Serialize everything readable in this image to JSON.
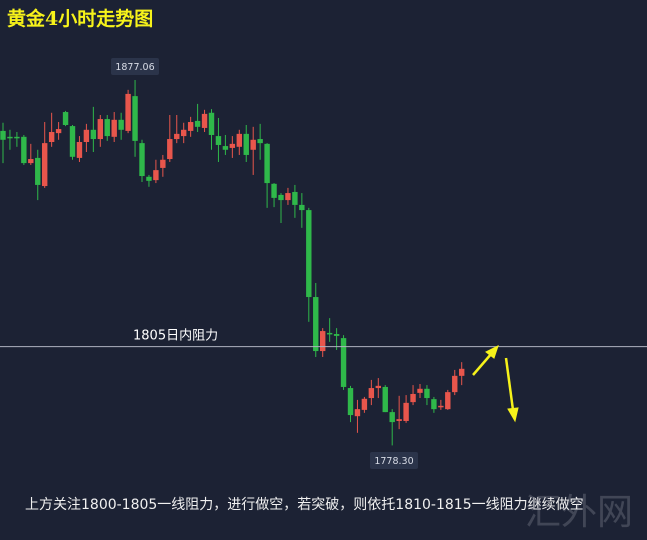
{
  "title": "黄金4小时走势图",
  "watermark": "汇外网",
  "note": "上方关注1800-1805一线阻力，进行做空，若突破，则依托1810-1815一线阻力继续做空",
  "chart_data": {
    "type": "candlestick",
    "title": "黄金4小时走势图",
    "colors": {
      "up": "#e8564c",
      "down": "#2fb84a",
      "background": "#1c2234",
      "arrow": "#f6f21a",
      "line": "#aeb3bf"
    },
    "ohlc_order": [
      "open",
      "high",
      "low",
      "close"
    ],
    "candles": [
      [
        1863.3,
        1865.5,
        1854.6,
        1860.9
      ],
      [
        1861.7,
        1863.6,
        1858.2,
        1861.5
      ],
      [
        1861.7,
        1863.0,
        1859.0,
        1861.6
      ],
      [
        1861.7,
        1862.2,
        1854.1,
        1854.6
      ],
      [
        1854.6,
        1859.8,
        1854.1,
        1855.7
      ],
      [
        1856.0,
        1858.2,
        1844.6,
        1848.7
      ],
      [
        1848.4,
        1865.7,
        1847.9,
        1860.0
      ],
      [
        1860.3,
        1868.2,
        1859.0,
        1863.0
      ],
      [
        1862.7,
        1865.7,
        1860.9,
        1863.8
      ],
      [
        1868.4,
        1868.7,
        1864.6,
        1864.9
      ],
      [
        1864.6,
        1864.9,
        1855.5,
        1856.3
      ],
      [
        1856.0,
        1861.9,
        1854.9,
        1860.3
      ],
      [
        1860.3,
        1865.2,
        1857.6,
        1863.6
      ],
      [
        1863.6,
        1869.8,
        1857.6,
        1861.1
      ],
      [
        1861.1,
        1867.6,
        1859.0,
        1866.5
      ],
      [
        1866.5,
        1867.6,
        1860.6,
        1861.9
      ],
      [
        1861.7,
        1868.4,
        1860.3,
        1866.3
      ],
      [
        1866.3,
        1868.2,
        1860.9,
        1863.6
      ],
      [
        1863.3,
        1874.4,
        1862.7,
        1873.3
      ],
      [
        1872.7,
        1877.06,
        1856.3,
        1860.6
      ],
      [
        1860.0,
        1860.9,
        1849.5,
        1851.1
      ],
      [
        1850.9,
        1851.4,
        1848.2,
        1849.8
      ],
      [
        1850.0,
        1855.5,
        1849.2,
        1852.7
      ],
      [
        1853.3,
        1856.8,
        1850.9,
        1855.5
      ],
      [
        1855.7,
        1867.6,
        1854.9,
        1861.1
      ],
      [
        1861.1,
        1867.6,
        1860.0,
        1862.5
      ],
      [
        1861.9,
        1865.5,
        1860.0,
        1863.6
      ],
      [
        1863.3,
        1867.1,
        1861.7,
        1865.7
      ],
      [
        1866.0,
        1870.6,
        1863.0,
        1864.4
      ],
      [
        1864.1,
        1869.0,
        1863.0,
        1867.9
      ],
      [
        1868.2,
        1869.2,
        1858.2,
        1862.2
      ],
      [
        1861.9,
        1866.8,
        1854.9,
        1859.5
      ],
      [
        1859.2,
        1862.2,
        1856.8,
        1858.2
      ],
      [
        1858.7,
        1861.9,
        1856.0,
        1859.8
      ],
      [
        1859.0,
        1863.6,
        1856.8,
        1862.5
      ],
      [
        1862.5,
        1864.9,
        1854.9,
        1856.8
      ],
      [
        1858.2,
        1864.4,
        1851.4,
        1860.9
      ],
      [
        1861.1,
        1865.2,
        1855.5,
        1860.0
      ],
      [
        1859.8,
        1860.0,
        1842.5,
        1849.2
      ],
      [
        1849.0,
        1849.2,
        1842.7,
        1845.2
      ],
      [
        1846.0,
        1846.5,
        1838.4,
        1844.6
      ],
      [
        1844.6,
        1847.9,
        1843.3,
        1846.5
      ],
      [
        1846.8,
        1848.7,
        1839.8,
        1843.3
      ],
      [
        1843.3,
        1846.5,
        1837.1,
        1841.9
      ],
      [
        1841.9,
        1842.5,
        1811.7,
        1818.4
      ],
      [
        1818.4,
        1822.2,
        1802.2,
        1803.8
      ],
      [
        1803.8,
        1810.0,
        1802.2,
        1809.2
      ],
      [
        1808.7,
        1812.7,
        1806.3,
        1808.4
      ],
      [
        1808.4,
        1810.0,
        1804.1,
        1807.9
      ],
      [
        1807.3,
        1808.1,
        1793.3,
        1794.1
      ],
      [
        1793.8,
        1794.4,
        1784.6,
        1786.5
      ],
      [
        1786.2,
        1790.6,
        1781.7,
        1788.1
      ],
      [
        1787.9,
        1791.4,
        1787.1,
        1790.9
      ],
      [
        1791.1,
        1796.0,
        1789.2,
        1793.8
      ],
      [
        1793.8,
        1796.5,
        1791.1,
        1794.4
      ],
      [
        1794.1,
        1794.6,
        1787.3,
        1787.3
      ],
      [
        1787.3,
        1788.1,
        1778.3,
        1784.6
      ],
      [
        1784.9,
        1791.7,
        1782.7,
        1785.4
      ],
      [
        1784.9,
        1791.9,
        1784.4,
        1789.8
      ],
      [
        1790.0,
        1794.6,
        1789.2,
        1792.2
      ],
      [
        1792.5,
        1794.9,
        1791.1,
        1793.6
      ],
      [
        1793.6,
        1794.6,
        1789.2,
        1791.1
      ],
      [
        1790.8,
        1791.4,
        1787.1,
        1788.1
      ],
      [
        1788.7,
        1790.6,
        1787.9,
        1789.0
      ],
      [
        1788.1,
        1793.3,
        1787.9,
        1792.7
      ],
      [
        1792.7,
        1798.7,
        1791.9,
        1797.1
      ],
      [
        1797.1,
        1800.8,
        1794.6,
        1799.0
      ]
    ],
    "high_label": "1877.06",
    "low_label": "1778.30",
    "resistance": {
      "value": 1805,
      "label": "1805日内阻力"
    },
    "annotations": [
      {
        "type": "arrow",
        "direction": "up",
        "color": "#f6f21a"
      },
      {
        "type": "arrow",
        "direction": "down",
        "color": "#f6f21a"
      }
    ]
  }
}
